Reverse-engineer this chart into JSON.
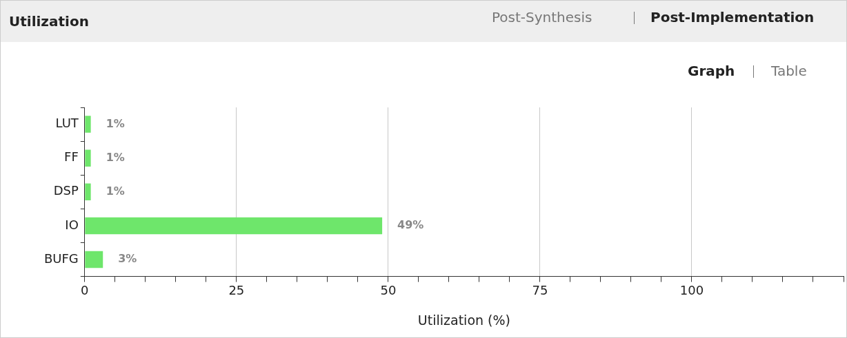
{
  "chart_data": {
    "type": "bar",
    "orientation": "horizontal",
    "title": "Utilization",
    "annotations": [
      "Post-Synthesis",
      "Post-Implementation",
      "Graph",
      "Table"
    ],
    "xlabel": "Utilization (%)",
    "categories": [
      "LUT",
      "FF",
      "DSP",
      "IO",
      "BUFG"
    ],
    "values": [
      1,
      1,
      1,
      49,
      3
    ],
    "value_labels": [
      "1%",
      "1%",
      "1%",
      "49%",
      "3%"
    ],
    "color": "#6ee66b",
    "xlim": [
      0,
      125
    ],
    "xticks": [
      0,
      {
        "value": 5,
        "label": null
      },
      {
        "value": 10,
        "label": null
      },
      {
        "value": 15,
        "label": null
      },
      {
        "value": 20,
        "label": null
      },
      25,
      {
        "value": 30,
        "label": null
      },
      {
        "value": 35,
        "label": null
      },
      {
        "value": 40,
        "label": null
      },
      {
        "value": 45,
        "label": null
      },
      50,
      {
        "value": 55,
        "label": null
      },
      {
        "value": 60,
        "label": null
      },
      {
        "value": 65,
        "label": null
      },
      {
        "value": 70,
        "label": null
      },
      75,
      {
        "value": 80,
        "label": null
      },
      {
        "value": 85,
        "label": null
      },
      {
        "value": 90,
        "label": null
      },
      {
        "value": 95,
        "label": null
      },
      100,
      {
        "value": 105,
        "label": null
      },
      {
        "value": 110,
        "label": null
      },
      {
        "value": 115,
        "label": null
      },
      {
        "value": 120,
        "label": null
      },
      {
        "value": 125,
        "label": null
      }
    ],
    "grid": "x",
    "legend": false
  }
}
